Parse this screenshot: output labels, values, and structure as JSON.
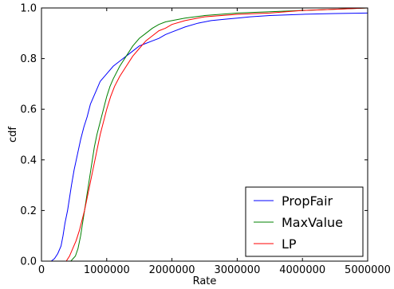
{
  "chart_data": {
    "type": "line",
    "xlabel": "Rate",
    "ylabel": "cdf",
    "xlim": [
      0,
      5000000
    ],
    "ylim": [
      0,
      1.0
    ],
    "x_ticks": [
      0,
      1000000,
      2000000,
      3000000,
      4000000,
      5000000
    ],
    "x_tick_labels": [
      "0",
      "1000000",
      "2000000",
      "3000000",
      "4000000",
      "5000000"
    ],
    "y_ticks": [
      0,
      0.2,
      0.4,
      0.6,
      0.8,
      1.0
    ],
    "y_tick_labels": [
      "0.0",
      "0.2",
      "0.4",
      "0.6",
      "0.8",
      "1.0"
    ],
    "grid": false,
    "legend_position": "lower-right",
    "series": [
      {
        "name": "PropFair",
        "color": "#0000ff",
        "points": [
          [
            150000,
            0.0
          ],
          [
            200000,
            0.01
          ],
          [
            250000,
            0.03
          ],
          [
            300000,
            0.06
          ],
          [
            330000,
            0.1
          ],
          [
            360000,
            0.15
          ],
          [
            400000,
            0.2
          ],
          [
            430000,
            0.25
          ],
          [
            460000,
            0.3
          ],
          [
            500000,
            0.36
          ],
          [
            550000,
            0.42
          ],
          [
            600000,
            0.48
          ],
          [
            650000,
            0.53
          ],
          [
            700000,
            0.57
          ],
          [
            750000,
            0.62
          ],
          [
            800000,
            0.65
          ],
          [
            850000,
            0.68
          ],
          [
            900000,
            0.71
          ],
          [
            1000000,
            0.74
          ],
          [
            1100000,
            0.77
          ],
          [
            1200000,
            0.79
          ],
          [
            1300000,
            0.81
          ],
          [
            1400000,
            0.83
          ],
          [
            1500000,
            0.85
          ],
          [
            1600000,
            0.86
          ],
          [
            1700000,
            0.87
          ],
          [
            1800000,
            0.88
          ],
          [
            1900000,
            0.895
          ],
          [
            2000000,
            0.905
          ],
          [
            2200000,
            0.925
          ],
          [
            2400000,
            0.94
          ],
          [
            2600000,
            0.95
          ],
          [
            2800000,
            0.955
          ],
          [
            3000000,
            0.96
          ],
          [
            3200000,
            0.965
          ],
          [
            3500000,
            0.97
          ],
          [
            4000000,
            0.975
          ],
          [
            4500000,
            0.978
          ],
          [
            5000000,
            0.98
          ]
        ]
      },
      {
        "name": "MaxValue",
        "color": "#008000",
        "points": [
          [
            450000,
            0.0
          ],
          [
            520000,
            0.02
          ],
          [
            560000,
            0.05
          ],
          [
            600000,
            0.1
          ],
          [
            630000,
            0.15
          ],
          [
            660000,
            0.2
          ],
          [
            690000,
            0.25
          ],
          [
            720000,
            0.3
          ],
          [
            750000,
            0.35
          ],
          [
            780000,
            0.4
          ],
          [
            810000,
            0.45
          ],
          [
            850000,
            0.5
          ],
          [
            900000,
            0.55
          ],
          [
            950000,
            0.6
          ],
          [
            1000000,
            0.65
          ],
          [
            1050000,
            0.69
          ],
          [
            1100000,
            0.72
          ],
          [
            1200000,
            0.77
          ],
          [
            1300000,
            0.81
          ],
          [
            1400000,
            0.85
          ],
          [
            1500000,
            0.88
          ],
          [
            1600000,
            0.9
          ],
          [
            1700000,
            0.92
          ],
          [
            1800000,
            0.935
          ],
          [
            1900000,
            0.945
          ],
          [
            2000000,
            0.95
          ],
          [
            2200000,
            0.96
          ],
          [
            2500000,
            0.97
          ],
          [
            3000000,
            0.98
          ],
          [
            3500000,
            0.985
          ],
          [
            4000000,
            0.99
          ],
          [
            4500000,
            0.995
          ],
          [
            5000000,
            1.0
          ]
        ]
      },
      {
        "name": "LP",
        "color": "#ff0000",
        "points": [
          [
            380000,
            0.0
          ],
          [
            430000,
            0.02
          ],
          [
            480000,
            0.05
          ],
          [
            530000,
            0.08
          ],
          [
            580000,
            0.12
          ],
          [
            620000,
            0.16
          ],
          [
            660000,
            0.2
          ],
          [
            700000,
            0.25
          ],
          [
            740000,
            0.3
          ],
          [
            780000,
            0.35
          ],
          [
            820000,
            0.4
          ],
          [
            860000,
            0.45
          ],
          [
            900000,
            0.5
          ],
          [
            950000,
            0.55
          ],
          [
            1000000,
            0.6
          ],
          [
            1060000,
            0.65
          ],
          [
            1120000,
            0.69
          ],
          [
            1200000,
            0.73
          ],
          [
            1300000,
            0.77
          ],
          [
            1400000,
            0.81
          ],
          [
            1500000,
            0.84
          ],
          [
            1600000,
            0.87
          ],
          [
            1700000,
            0.89
          ],
          [
            1800000,
            0.91
          ],
          [
            1900000,
            0.92
          ],
          [
            2000000,
            0.935
          ],
          [
            2200000,
            0.95
          ],
          [
            2500000,
            0.965
          ],
          [
            3000000,
            0.975
          ],
          [
            3500000,
            0.98
          ],
          [
            4000000,
            0.99
          ],
          [
            4500000,
            0.995
          ],
          [
            5000000,
            1.0
          ]
        ]
      }
    ]
  }
}
